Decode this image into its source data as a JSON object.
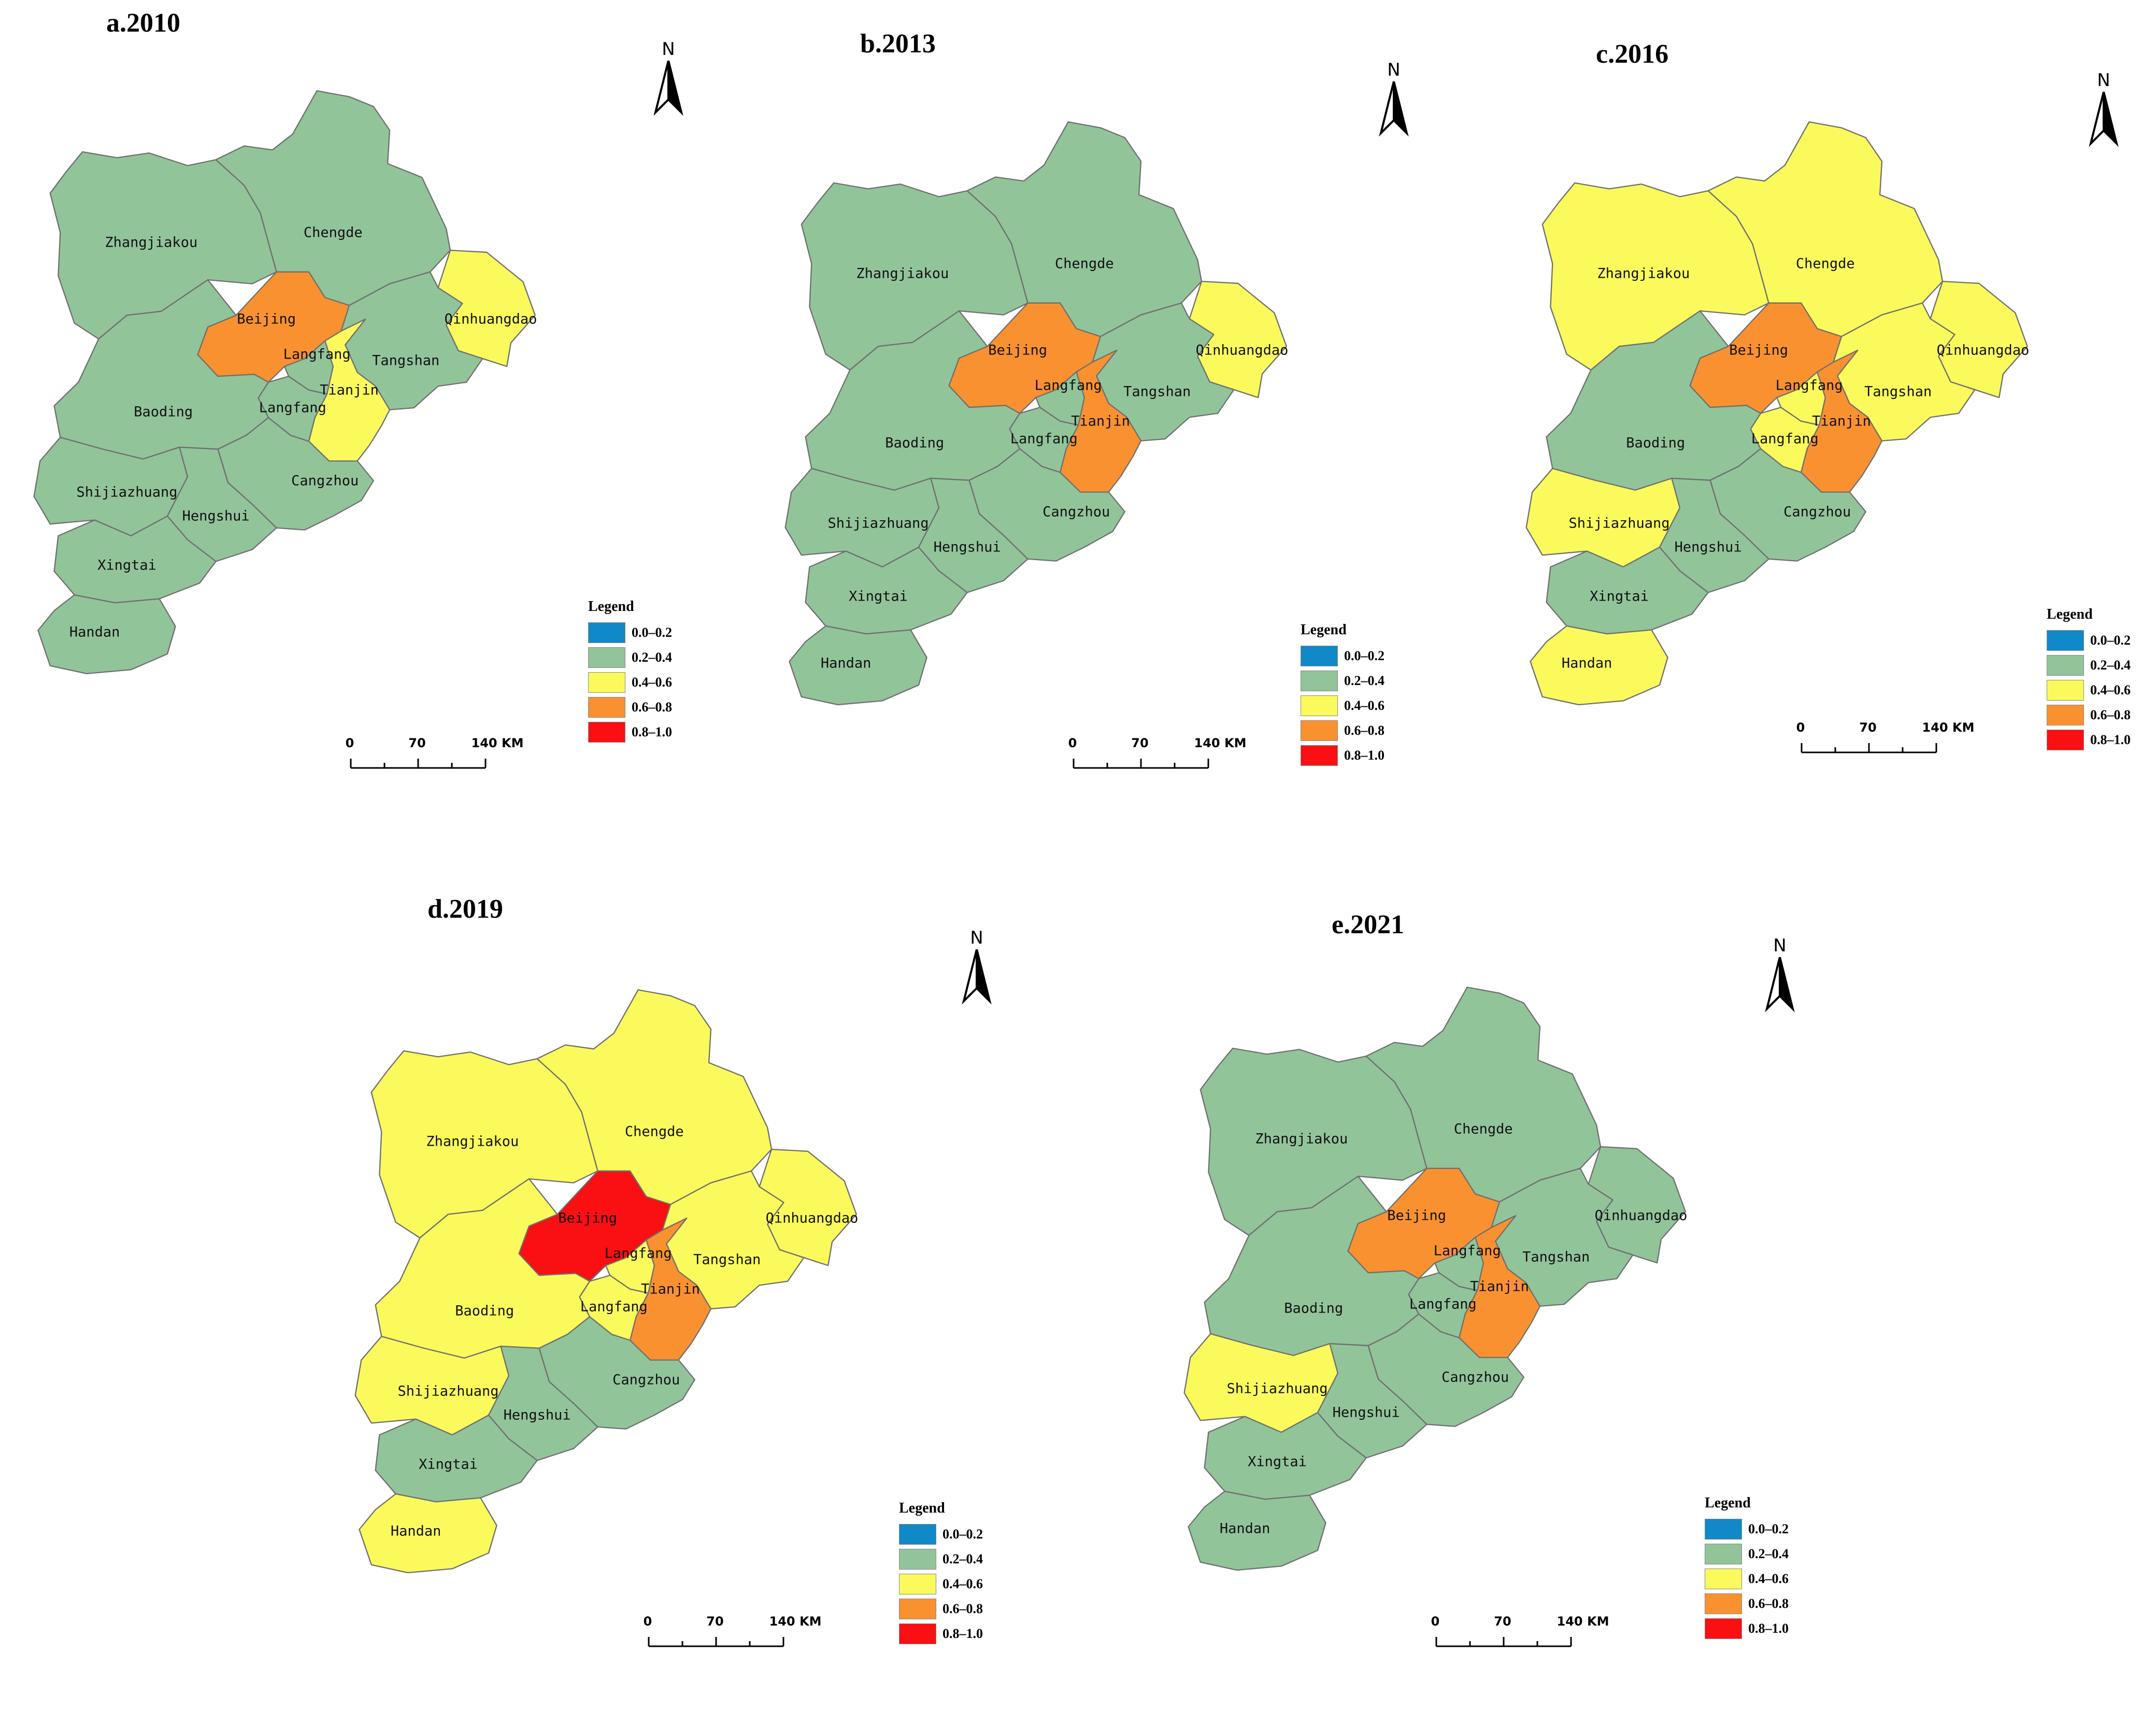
{
  "legend": {
    "title": "Legend",
    "classes": [
      {
        "label": "0.0–0.2",
        "color": "#1189c8"
      },
      {
        "label": "0.2–0.4",
        "color": "#92c49a"
      },
      {
        "label": "0.4–0.6",
        "color": "#fafa5c"
      },
      {
        "label": "0.6–0.8",
        "color": "#fa9130"
      },
      {
        "label": "0.8–1.0",
        "color": "#fa0f12"
      }
    ]
  },
  "north_arrow": {
    "letter": "N"
  },
  "scale_bar": {
    "labels": [
      "0",
      "70",
      "140 KM"
    ]
  },
  "city_names": {
    "Zhangjiakou": "Zhangjiakou",
    "Chengde": "Chengde",
    "Beijing": "Beijing",
    "Qinhuangdao": "Qinhuangdao",
    "Tangshan": "Tangshan",
    "Tianjin": "Tianjin",
    "Langfang": "Langfang",
    "Baoding": "Baoding",
    "Cangzhou": "Cangzhou",
    "Shijiazhuang": "Shijiazhuang",
    "Hengshui": "Hengshui",
    "Xingtai": "Xingtai",
    "Handan": "Handan"
  },
  "panels": [
    {
      "title": "a.2010",
      "classes": {
        "Zhangjiakou": "0.2–0.4",
        "Chengde": "0.2–0.4",
        "Beijing": "0.6–0.8",
        "Qinhuangdao": "0.4–0.6",
        "Tangshan": "0.2–0.4",
        "Tianjin": "0.4–0.6",
        "LangfangN": "0.2–0.4",
        "LangfangS": "0.2–0.4",
        "Baoding": "0.2–0.4",
        "Cangzhou": "0.2–0.4",
        "Shijiazhuang": "0.2–0.4",
        "Hengshui": "0.2–0.4",
        "Xingtai": "0.2–0.4",
        "Handan": "0.2–0.4"
      }
    },
    {
      "title": "b.2013",
      "classes": {
        "Zhangjiakou": "0.2–0.4",
        "Chengde": "0.2–0.4",
        "Beijing": "0.6–0.8",
        "Qinhuangdao": "0.4–0.6",
        "Tangshan": "0.2–0.4",
        "Tianjin": "0.6–0.8",
        "LangfangN": "0.2–0.4",
        "LangfangS": "0.2–0.4",
        "Baoding": "0.2–0.4",
        "Cangzhou": "0.2–0.4",
        "Shijiazhuang": "0.2–0.4",
        "Hengshui": "0.2–0.4",
        "Xingtai": "0.2–0.4",
        "Handan": "0.2–0.4"
      }
    },
    {
      "title": "c.2016",
      "classes": {
        "Zhangjiakou": "0.4–0.6",
        "Chengde": "0.4–0.6",
        "Beijing": "0.6–0.8",
        "Qinhuangdao": "0.4–0.6",
        "Tangshan": "0.4–0.6",
        "Tianjin": "0.6–0.8",
        "LangfangN": "0.4–0.6",
        "LangfangS": "0.4–0.6",
        "Baoding": "0.2–0.4",
        "Cangzhou": "0.2–0.4",
        "Shijiazhuang": "0.4–0.6",
        "Hengshui": "0.2–0.4",
        "Xingtai": "0.2–0.4",
        "Handan": "0.4–0.6"
      }
    },
    {
      "title": "d.2019",
      "classes": {
        "Zhangjiakou": "0.4–0.6",
        "Chengde": "0.4–0.6",
        "Beijing": "0.8–1.0",
        "Qinhuangdao": "0.4–0.6",
        "Tangshan": "0.4–0.6",
        "Tianjin": "0.6–0.8",
        "LangfangN": "0.4–0.6",
        "LangfangS": "0.4–0.6",
        "Baoding": "0.4–0.6",
        "Cangzhou": "0.2–0.4",
        "Shijiazhuang": "0.4–0.6",
        "Hengshui": "0.2–0.4",
        "Xingtai": "0.2–0.4",
        "Handan": "0.4–0.6"
      }
    },
    {
      "title": "e.2021",
      "classes": {
        "Zhangjiakou": "0.2–0.4",
        "Chengde": "0.2–0.4",
        "Beijing": "0.6–0.8",
        "Qinhuangdao": "0.2–0.4",
        "Tangshan": "0.2–0.4",
        "Tianjin": "0.6–0.8",
        "LangfangN": "0.2–0.4",
        "LangfangS": "0.2–0.4",
        "Baoding": "0.2–0.4",
        "Cangzhou": "0.2–0.4",
        "Shijiazhuang": "0.4–0.6",
        "Hengshui": "0.2–0.4",
        "Xingtai": "0.2–0.4",
        "Handan": "0.2–0.4"
      }
    }
  ]
}
